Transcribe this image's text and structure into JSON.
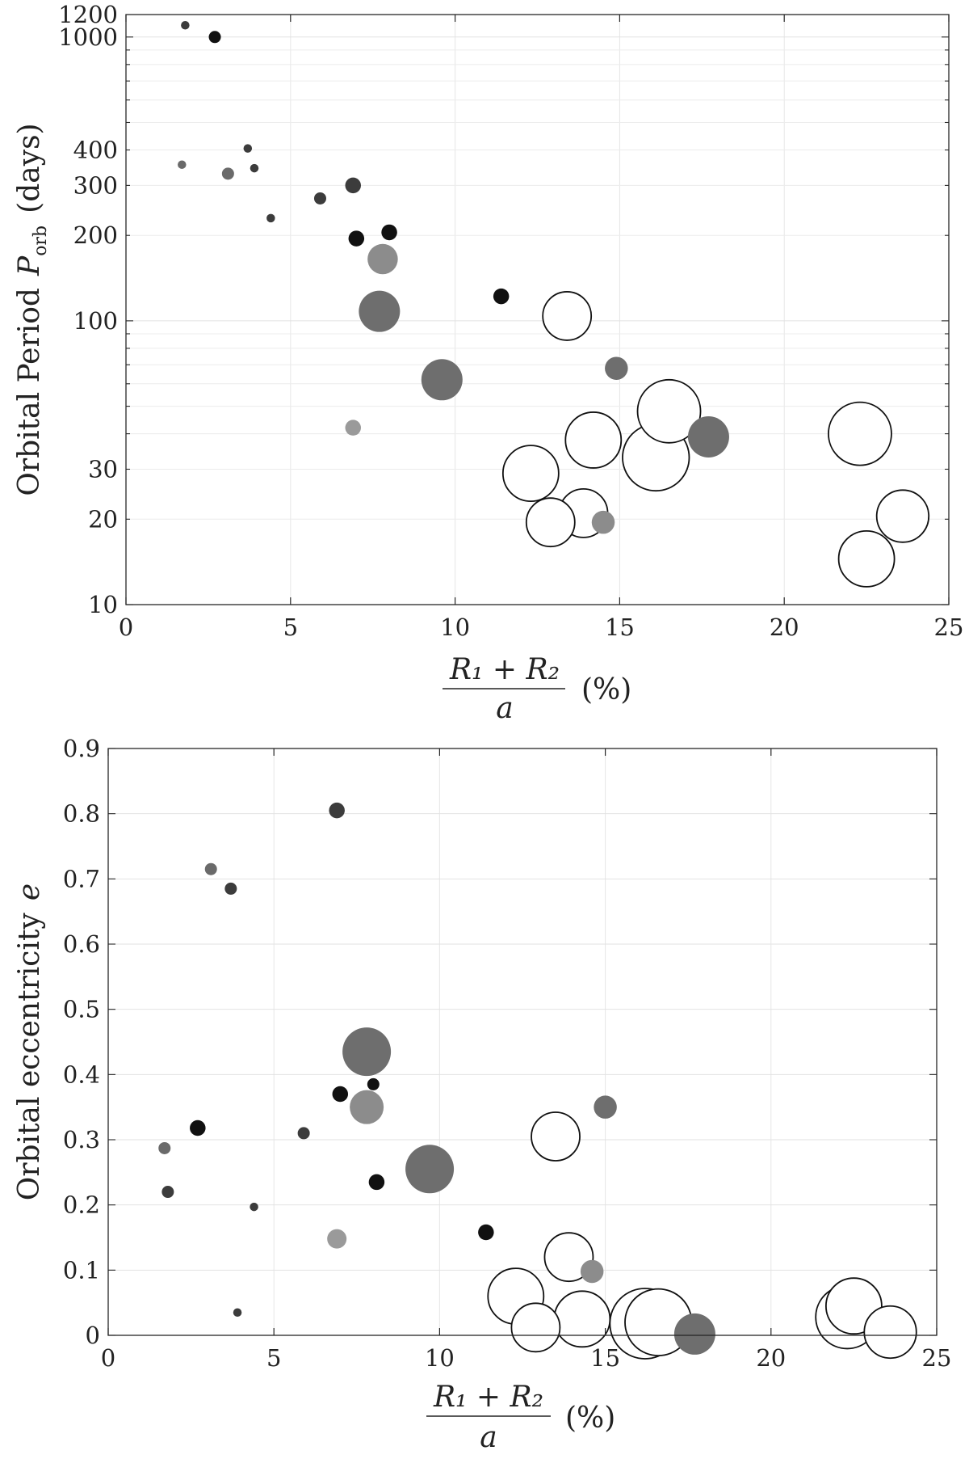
{
  "chart_data": [
    {
      "type": "scatter",
      "ylabel": {
        "prefix": "Orbital Period",
        "symbol": "P",
        "subscript": "orb",
        "unit": "(days)"
      },
      "xlabel": {
        "numerator": "R₁ + R₂",
        "denominator": "a",
        "unit": "(%)"
      },
      "x_axis": {
        "scale": "linear",
        "range": [
          0,
          25
        ],
        "ticks": [
          "0",
          "5",
          "10",
          "15",
          "20",
          "25"
        ],
        "tick_values": [
          0,
          5,
          10,
          15,
          20,
          25
        ]
      },
      "y_axis": {
        "scale": "log",
        "range": [
          10,
          1200
        ],
        "ticks": [
          "10",
          "20",
          "30",
          "100",
          "200",
          "300",
          "400",
          "1000",
          "1200"
        ],
        "tick_values": [
          10,
          20,
          30,
          100,
          200,
          300,
          400,
          1000,
          1200
        ]
      },
      "grid": true,
      "points": [
        {
          "x": 1.8,
          "y": 1100,
          "size": 1,
          "fill": "#3c3c3c"
        },
        {
          "x": 2.7,
          "y": 1000,
          "size": 2,
          "fill": "#111111"
        },
        {
          "x": 1.7,
          "y": 355,
          "size": 1,
          "fill": "#6a6a6a"
        },
        {
          "x": 3.1,
          "y": 330,
          "size": 2,
          "fill": "#6a6a6a"
        },
        {
          "x": 3.7,
          "y": 405,
          "size": 1,
          "fill": "#3c3c3c"
        },
        {
          "x": 3.9,
          "y": 345,
          "size": 1,
          "fill": "#3c3c3c"
        },
        {
          "x": 4.4,
          "y": 230,
          "size": 1,
          "fill": "#3c3c3c"
        },
        {
          "x": 5.9,
          "y": 270,
          "size": 2,
          "fill": "#3c3c3c"
        },
        {
          "x": 6.9,
          "y": 300,
          "size": 3,
          "fill": "#3c3c3c"
        },
        {
          "x": 7.0,
          "y": 195,
          "size": 3,
          "fill": "#111111"
        },
        {
          "x": 8.0,
          "y": 205,
          "size": 3,
          "fill": "#111111"
        },
        {
          "x": 7.8,
          "y": 165,
          "size": 7,
          "fill": "#8c8c8c"
        },
        {
          "x": 7.7,
          "y": 108,
          "size": 10,
          "fill": "#6e6e6e"
        },
        {
          "x": 6.9,
          "y": 42,
          "size": 3,
          "fill": "#9a9a9a"
        },
        {
          "x": 9.6,
          "y": 62,
          "size": 10,
          "fill": "#6e6e6e"
        },
        {
          "x": 11.4,
          "y": 122,
          "size": 3,
          "fill": "#111111"
        },
        {
          "x": 13.4,
          "y": 104,
          "size": 12,
          "fill": "#ffffff"
        },
        {
          "x": 14.9,
          "y": 68,
          "size": 5,
          "fill": "#6e6e6e"
        },
        {
          "x": 16.5,
          "y": 48,
          "size": 16,
          "fill": "#ffffff"
        },
        {
          "x": 14.2,
          "y": 38,
          "size": 14,
          "fill": "#ffffff"
        },
        {
          "x": 17.7,
          "y": 39,
          "size": 10,
          "fill": "#6e6e6e"
        },
        {
          "x": 16.1,
          "y": 33,
          "size": 17,
          "fill": "#ffffff"
        },
        {
          "x": 22.3,
          "y": 40,
          "size": 16,
          "fill": "#ffffff"
        },
        {
          "x": 12.3,
          "y": 29,
          "size": 14,
          "fill": "#ffffff"
        },
        {
          "x": 13.9,
          "y": 21,
          "size": 12,
          "fill": "#ffffff"
        },
        {
          "x": 14.5,
          "y": 19.5,
          "size": 5,
          "fill": "#8c8c8c"
        },
        {
          "x": 12.9,
          "y": 19.5,
          "size": 12,
          "fill": "#ffffff"
        },
        {
          "x": 23.6,
          "y": 20.5,
          "size": 13,
          "fill": "#ffffff"
        },
        {
          "x": 22.5,
          "y": 14.5,
          "size": 14,
          "fill": "#ffffff"
        }
      ]
    },
    {
      "type": "scatter",
      "ylabel": {
        "prefix": "Orbital eccentricity",
        "symbol": "e"
      },
      "xlabel": {
        "numerator": "R₁ + R₂",
        "denominator": "a",
        "unit": "(%)"
      },
      "x_axis": {
        "scale": "linear",
        "range": [
          0,
          25
        ],
        "ticks": [
          "0",
          "5",
          "10",
          "15",
          "20",
          "25"
        ],
        "tick_values": [
          0,
          5,
          10,
          15,
          20,
          25
        ]
      },
      "y_axis": {
        "scale": "linear",
        "range": [
          0,
          0.9
        ],
        "ticks": [
          "0",
          "0.1",
          "0.2",
          "0.3",
          "0.4",
          "0.5",
          "0.6",
          "0.7",
          "0.8",
          "0.9"
        ],
        "tick_values": [
          0,
          0.1,
          0.2,
          0.3,
          0.4,
          0.5,
          0.6,
          0.7,
          0.8,
          0.9
        ]
      },
      "grid": true,
      "points": [
        {
          "x": 6.9,
          "y": 0.805,
          "size": 3,
          "fill": "#3c3c3c"
        },
        {
          "x": 3.1,
          "y": 0.715,
          "size": 2,
          "fill": "#6a6a6a"
        },
        {
          "x": 3.7,
          "y": 0.685,
          "size": 2,
          "fill": "#3c3c3c"
        },
        {
          "x": 7.8,
          "y": 0.435,
          "size": 12,
          "fill": "#6e6e6e"
        },
        {
          "x": 7.0,
          "y": 0.37,
          "size": 3,
          "fill": "#111111"
        },
        {
          "x": 8.0,
          "y": 0.385,
          "size": 2,
          "fill": "#111111"
        },
        {
          "x": 7.8,
          "y": 0.35,
          "size": 8,
          "fill": "#8c8c8c"
        },
        {
          "x": 15.0,
          "y": 0.35,
          "size": 5,
          "fill": "#6e6e6e"
        },
        {
          "x": 2.7,
          "y": 0.318,
          "size": 3,
          "fill": "#111111"
        },
        {
          "x": 5.9,
          "y": 0.31,
          "size": 2,
          "fill": "#3c3c3c"
        },
        {
          "x": 1.7,
          "y": 0.287,
          "size": 2,
          "fill": "#6a6a6a"
        },
        {
          "x": 13.5,
          "y": 0.305,
          "size": 12,
          "fill": "#ffffff"
        },
        {
          "x": 9.7,
          "y": 0.255,
          "size": 12,
          "fill": "#6e6e6e"
        },
        {
          "x": 8.1,
          "y": 0.235,
          "size": 3,
          "fill": "#111111"
        },
        {
          "x": 1.8,
          "y": 0.22,
          "size": 2,
          "fill": "#3c3c3c"
        },
        {
          "x": 4.4,
          "y": 0.197,
          "size": 1,
          "fill": "#3c3c3c"
        },
        {
          "x": 6.9,
          "y": 0.148,
          "size": 4,
          "fill": "#9a9a9a"
        },
        {
          "x": 11.4,
          "y": 0.158,
          "size": 3,
          "fill": "#111111"
        },
        {
          "x": 13.9,
          "y": 0.12,
          "size": 12,
          "fill": "#ffffff"
        },
        {
          "x": 14.6,
          "y": 0.098,
          "size": 5,
          "fill": "#8c8c8c"
        },
        {
          "x": 3.9,
          "y": 0.035,
          "size": 1,
          "fill": "#3c3c3c"
        },
        {
          "x": 12.3,
          "y": 0.06,
          "size": 14,
          "fill": "#ffffff"
        },
        {
          "x": 16.6,
          "y": 0.02,
          "size": 17,
          "fill": "#ffffff"
        },
        {
          "x": 14.3,
          "y": 0.025,
          "size": 14,
          "fill": "#ffffff"
        },
        {
          "x": 12.9,
          "y": 0.012,
          "size": 12,
          "fill": "#ffffff"
        },
        {
          "x": 16.2,
          "y": 0.018,
          "size": 18,
          "fill": "#ffffff"
        },
        {
          "x": 17.7,
          "y": 0.002,
          "size": 10,
          "fill": "#6e6e6e"
        },
        {
          "x": 22.3,
          "y": 0.028,
          "size": 16,
          "fill": "#ffffff"
        },
        {
          "x": 22.5,
          "y": 0.045,
          "size": 14,
          "fill": "#ffffff"
        },
        {
          "x": 23.6,
          "y": 0.005,
          "size": 13,
          "fill": "#ffffff"
        }
      ]
    }
  ]
}
